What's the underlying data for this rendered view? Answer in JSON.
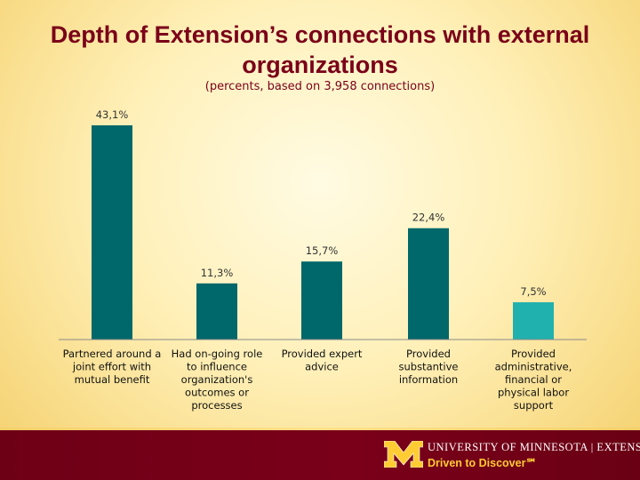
{
  "header": {
    "title": "Depth of Extension’s connections with external organizations",
    "subtitle": "(percents, based on 3,958 connections)"
  },
  "chart_data": {
    "type": "bar",
    "title": "Depth of Extension’s connections with external organizations",
    "subtitle": "(percents, based on 3,958 connections)",
    "categories": [
      "Partnered around a joint effort with mutual benefit",
      "Had on-going role to influence organization's outcomes or processes",
      "Provided expert advice",
      "Provided substantive information",
      "Provided administrative, financial or physical labor support"
    ],
    "category_lines": [
      [
        "Partnered around a",
        "joint effort with",
        "mutual benefit"
      ],
      [
        "Had on-going role",
        "to influence",
        "organization's",
        "outcomes or",
        "processes"
      ],
      [
        "Provided expert",
        "advice"
      ],
      [
        "Provided",
        "substantive",
        "information"
      ],
      [
        "Provided",
        "administrative,",
        "financial or",
        "physical labor",
        "support"
      ]
    ],
    "values": [
      43.1,
      11.3,
      15.7,
      22.4,
      7.5
    ],
    "data_labels": [
      "43,1%",
      "11,3%",
      "15,7%",
      "22,4%",
      "7,5%"
    ],
    "bar_colors": [
      "#00676a",
      "#00676a",
      "#00676a",
      "#00676a",
      "#20b0ad"
    ],
    "ylim": [
      0,
      43.1
    ],
    "grid": false,
    "legend": "none"
  },
  "footer": {
    "logo_icon": "block-m-logo",
    "university": "UNIVERSITY OF MINNESOTA | EXTENSION",
    "tagline": "Driven to Discover℠",
    "colors": {
      "maroon": "#7a0019",
      "gold": "#ffcc33"
    }
  }
}
